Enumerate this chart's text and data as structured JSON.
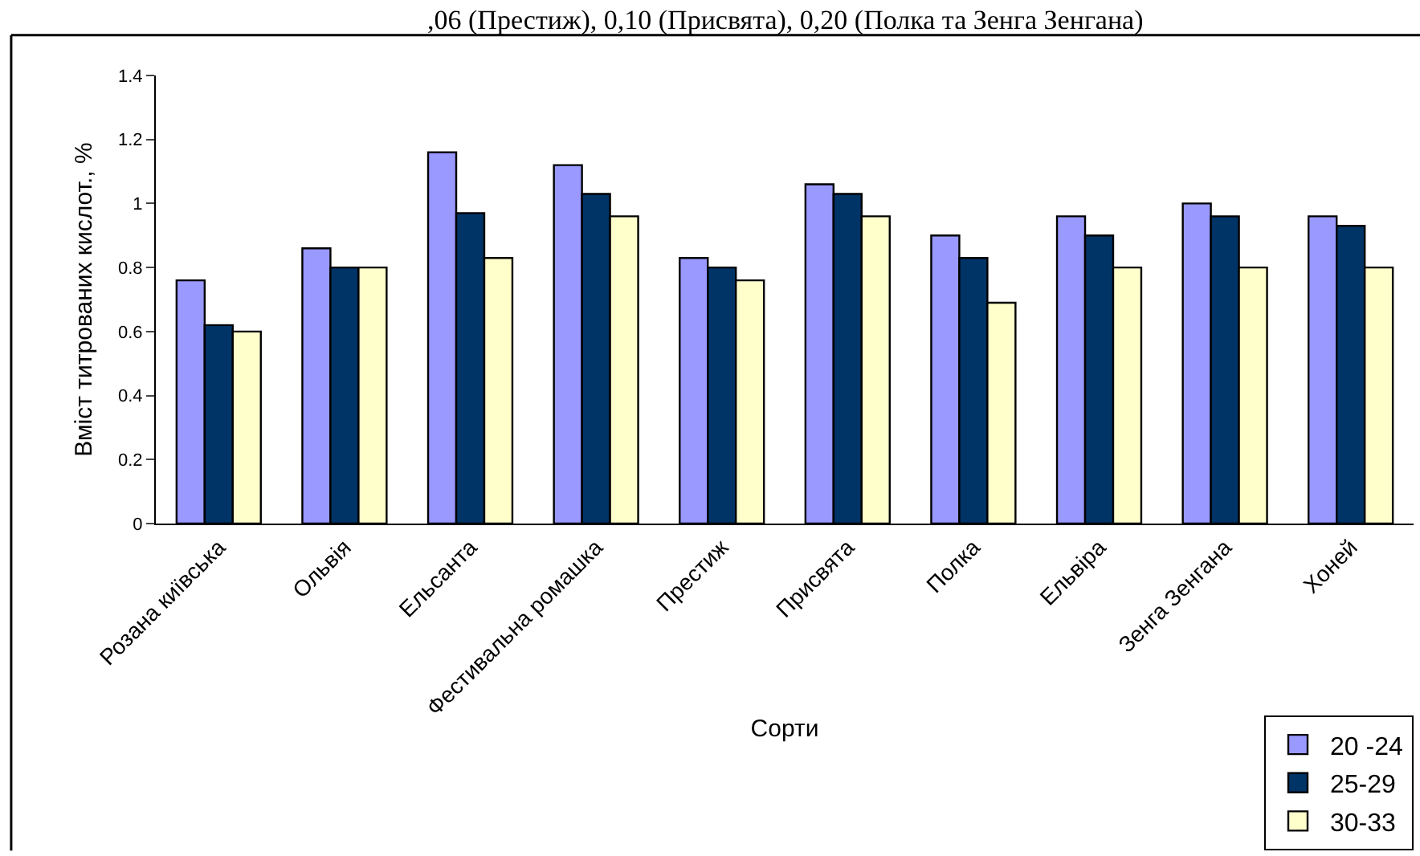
{
  "chart_data": {
    "type": "bar",
    "annotations": [
      ",06 (Престиж), 0,10 (Присвята), 0,20 (Полка та Зенга Зенгана)"
    ],
    "xlabel": "Сорти",
    "ylabel": "Вміст титрованих кислот., %",
    "categories": [
      "Розана київська",
      "Ольвія",
      "Ельсанта",
      "Фестивальна ромашка",
      "Престиж",
      "Присвята",
      "Полка",
      "Ельвіра",
      "Зенга Зенгана",
      "Хоней"
    ],
    "series": [
      {
        "name": "20 -24",
        "color": "#9999ff",
        "values": [
          0.76,
          0.86,
          1.16,
          1.12,
          0.83,
          1.06,
          0.9,
          0.96,
          1.0,
          0.96
        ]
      },
      {
        "name": "25-29",
        "color": "#003366",
        "values": [
          0.62,
          0.8,
          0.97,
          1.03,
          0.8,
          1.03,
          0.83,
          0.9,
          0.96,
          0.93
        ]
      },
      {
        "name": "30-33",
        "color": "#ffffcc",
        "values": [
          0.6,
          0.8,
          0.83,
          0.96,
          0.76,
          0.96,
          0.69,
          0.8,
          0.8,
          0.8
        ]
      }
    ],
    "ylim": [
      0,
      1.4
    ],
    "yticks": [
      0,
      0.2,
      0.4,
      0.6,
      0.8,
      1,
      1.2,
      1.4
    ],
    "grid": false,
    "legend": "bottom right"
  }
}
